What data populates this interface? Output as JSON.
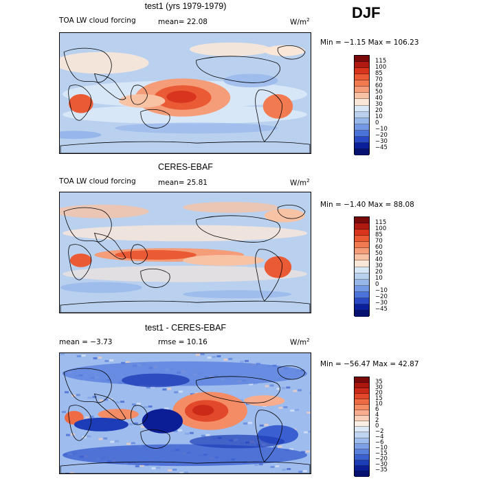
{
  "season": "DJF",
  "panels": [
    {
      "title": "test1 (yrs 1979-1979)",
      "left_label": "TOA LW cloud forcing",
      "stat1": "mean=  22.08",
      "stat2": "",
      "units": "W/m",
      "units_sup": "2",
      "minmax": "Min =  −1.15 Max = 106.23",
      "colorbar_ticks": [
        "115",
        "100",
        "85",
        "70",
        "60",
        "50",
        "40",
        "30",
        "20",
        "10",
        "0",
        "−10",
        "−20",
        "−30",
        "−45"
      ],
      "colorbar_colors": [
        "#7a0a0a",
        "#b01a10",
        "#d9351e",
        "#ea5a35",
        "#f27a50",
        "#f59c78",
        "#f8c3a5",
        "#fbe7d8",
        "#d8e7f7",
        "#b9d1ef",
        "#97b7eb",
        "#7398e4",
        "#4c73d9",
        "#2a49c4",
        "#0b1f9a",
        "#071170"
      ]
    },
    {
      "title": "CERES-EBAF",
      "left_label": "TOA LW cloud forcing",
      "stat1": "mean=  25.81",
      "stat2": "",
      "units": "W/m",
      "units_sup": "2",
      "minmax": "Min =  −1.40 Max =  88.08",
      "colorbar_ticks": [
        "115",
        "100",
        "85",
        "70",
        "60",
        "50",
        "40",
        "30",
        "20",
        "10",
        "0",
        "−10",
        "−20",
        "−30",
        "−45"
      ],
      "colorbar_colors": [
        "#7a0a0a",
        "#b01a10",
        "#d9351e",
        "#ea5a35",
        "#f27a50",
        "#f59c78",
        "#f8c3a5",
        "#fbe7d8",
        "#d8e7f7",
        "#b9d1ef",
        "#97b7eb",
        "#7398e4",
        "#4c73d9",
        "#2a49c4",
        "#0b1f9a",
        "#071170"
      ]
    },
    {
      "title": "test1 - CERES-EBAF",
      "left_label": "mean =   −3.73",
      "stat1": "",
      "stat2": "rmse =   10.16",
      "units": "W/m",
      "units_sup": "2",
      "minmax": "Min = −56.47 Max =  42.87",
      "colorbar_ticks": [
        "35",
        "30",
        "20",
        "15",
        "10",
        "6",
        "4",
        "2",
        "0",
        "−2",
        "−4",
        "−6",
        "−10",
        "−15",
        "−20",
        "−30",
        "−35"
      ],
      "colorbar_colors": [
        "#7a0a0a",
        "#a8160e",
        "#cc2a18",
        "#e2482a",
        "#ee6b44",
        "#f48c66",
        "#f7ad8e",
        "#fad0bb",
        "#fbeee5",
        "#dfeaf8",
        "#bfd4f1",
        "#9ebced",
        "#7c9fe6",
        "#5a80dd",
        "#3a5fd0",
        "#1d3cb8",
        "#0c1e95",
        "#071170"
      ]
    }
  ],
  "chart_data": [
    {
      "type": "heatmap",
      "title": "test1 (yrs 1979-1979)",
      "subtitle": "TOA LW cloud forcing",
      "mean": 22.08,
      "min": -1.15,
      "max": 106.23,
      "units": "W/m2",
      "season": "DJF",
      "contour_levels": [
        -45,
        -30,
        -20,
        -10,
        0,
        10,
        20,
        30,
        40,
        50,
        60,
        70,
        85,
        100,
        115
      ],
      "colormap": "blue-white-red",
      "map": "global, centered on Pacific"
    },
    {
      "type": "heatmap",
      "title": "CERES-EBAF",
      "subtitle": "TOA LW cloud forcing",
      "mean": 25.81,
      "min": -1.4,
      "max": 88.08,
      "units": "W/m2",
      "season": "DJF",
      "contour_levels": [
        -45,
        -30,
        -20,
        -10,
        0,
        10,
        20,
        30,
        40,
        50,
        60,
        70,
        85,
        100,
        115
      ],
      "colormap": "blue-white-red",
      "map": "global, centered on Pacific"
    },
    {
      "type": "heatmap",
      "title": "test1 - CERES-EBAF",
      "mean": -3.73,
      "rmse": 10.16,
      "min": -56.47,
      "max": 42.87,
      "units": "W/m2",
      "season": "DJF",
      "contour_levels": [
        -35,
        -30,
        -20,
        -15,
        -10,
        -6,
        -4,
        -2,
        0,
        2,
        4,
        6,
        10,
        15,
        20,
        30,
        35
      ],
      "colormap": "blue-white-red",
      "map": "global, centered on Pacific"
    }
  ]
}
